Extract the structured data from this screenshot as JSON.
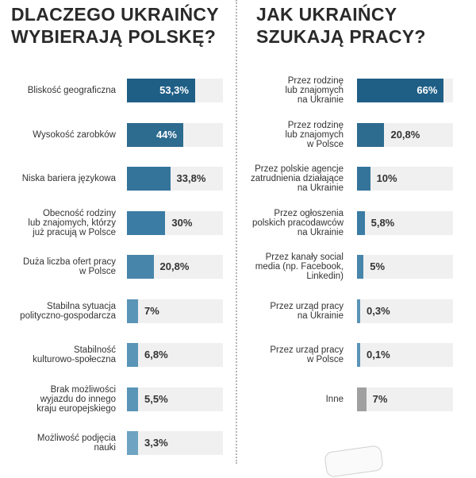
{
  "left": {
    "title_lines": [
      "DLACZEGO UKRAIŃCY",
      "WYBIERAJĄ POLSKĘ?"
    ]
  },
  "right": {
    "title_lines": [
      "JAK UKRAIŃCY",
      "SZUKAJĄ PRACY?"
    ]
  },
  "chart_data": [
    {
      "type": "bar",
      "orientation": "horizontal",
      "title": "DLACZEGO UKRAIŃCY WYBIERAJĄ POLSKĘ?",
      "xlim": [
        0,
        75
      ],
      "categories": [
        "Bliskość geograficzna",
        "Wysokość zarobków",
        "Niska bariera językowa",
        "Obecność rodziny\nlub znajomych, którzy\njuż pracują w Polsce",
        "Duża liczba ofert pracy\nw Polsce",
        "Stabilna sytuacja\npolityczno-gospodarcza",
        "Stabilność\nkulturowo-społeczna",
        "Brak możliwości\nwyjazdu do innego\nkraju europejskiego",
        "Możliwość podjęcia\nnauki"
      ],
      "values": [
        53.3,
        44,
        33.8,
        30,
        20.8,
        7,
        6.8,
        5.5,
        3.3
      ],
      "value_labels": [
        "53,3%",
        "44%",
        "33,8%",
        "30%",
        "20,8%",
        "7%",
        "6,8%",
        "5,5%",
        "3,3%"
      ],
      "colors": [
        "#1f5f86",
        "#2d6b8f",
        "#34749a",
        "#3a7ca3",
        "#4885aa",
        "#5a94b7",
        "#5a94b7",
        "#5a94b7",
        "#6ea3c2"
      ]
    },
    {
      "type": "bar",
      "orientation": "horizontal",
      "title": "JAK UKRAIŃCY SZUKAJĄ PRACY?",
      "xlim": [
        0,
        73
      ],
      "categories": [
        "Przez rodzinę\nlub znajomych\nna Ukrainie",
        "Przez rodzinę\nlub znajomych\nw Polsce",
        "Przez polskie agencje\nzatrudnienia działające\nna Ukrainie",
        "Przez ogłoszenia\npolskich pracodawców\nna Ukrainie",
        "Przez kanały social\nmedia (np. Facebook,\nLinkedin)",
        "Przez urząd pracy\nna Ukrainie",
        "Przez urząd pracy\nw Polsce",
        "Inne"
      ],
      "values": [
        66,
        20.8,
        10,
        5.8,
        5,
        0.3,
        0.1,
        7
      ],
      "value_labels": [
        "66%",
        "20,8%",
        "10%",
        "5,8%",
        "5%",
        "0,3%",
        "0,1%",
        "7%"
      ],
      "colors": [
        "#1f5f86",
        "#2d6b8f",
        "#34749a",
        "#3a7ca3",
        "#4885aa",
        "#5a94b7",
        "#5a94b7",
        "#a0a0a0"
      ]
    }
  ]
}
